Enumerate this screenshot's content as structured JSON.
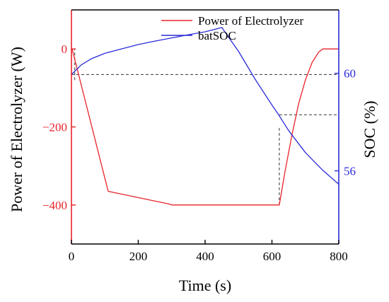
{
  "chart_data": {
    "type": "line",
    "xlabel": "Time (s)",
    "ylabel_left": "Power of Electrolyzer (W)",
    "ylabel_right": "SOC (%)",
    "xlim": [
      0,
      800
    ],
    "ylim_left": [
      -500,
      100
    ],
    "ylim_right": [
      53,
      62.6
    ],
    "x_ticks": [
      0,
      200,
      400,
      600,
      800
    ],
    "x_tick_labels": [
      "0",
      "200",
      "400",
      "600",
      "800"
    ],
    "y_left_ticks": [
      0,
      -200,
      -400
    ],
    "y_left_tick_labels": [
      "0",
      "−200",
      "−400"
    ],
    "y_right_ticks": [
      60,
      56
    ],
    "y_right_tick_labels": [
      "60",
      "56"
    ],
    "grid": false,
    "legend_position": "top-right",
    "colors": {
      "power": "#e8232a",
      "soc": "#2b2bd9",
      "guide": "#333333",
      "frame": "#000000"
    },
    "series": [
      {
        "name": "Power of Electrolyzer",
        "axis": "left",
        "x": [
          0,
          2,
          110,
          295,
          300,
          618,
          622,
          640,
          660,
          680,
          700,
          720,
          740,
          752,
          800
        ],
        "y": [
          0,
          0,
          -365,
          -398,
          -400,
          -400,
          -400,
          -310,
          -220,
          -140,
          -80,
          -35,
          -8,
          0,
          0
        ]
      },
      {
        "name": "batSOC",
        "axis": "right",
        "x": [
          0,
          30,
          60,
          100,
          150,
          200,
          250,
          300,
          350,
          400,
          450,
          500,
          550,
          600,
          620,
          650,
          700,
          750,
          800
        ],
        "y": [
          59.95,
          60.35,
          60.6,
          60.82,
          61.0,
          61.18,
          61.32,
          61.45,
          61.58,
          61.7,
          61.88,
          60.9,
          59.75,
          58.7,
          58.3,
          57.65,
          56.75,
          56.05,
          55.45
        ]
      }
    ],
    "guide_lines": [
      {
        "type": "h",
        "axis": "right",
        "y": 59.95,
        "x_from": 0,
        "x_to": 800
      },
      {
        "type": "v",
        "x": 10,
        "axis": "left",
        "y_from": -80,
        "y_to": 0
      },
      {
        "type": "h",
        "axis": "right",
        "y": 58.3,
        "x_from": 622,
        "x_to": 800
      },
      {
        "type": "v",
        "x": 622,
        "axis": "left",
        "y_from": -400,
        "y_to": -200
      }
    ]
  }
}
